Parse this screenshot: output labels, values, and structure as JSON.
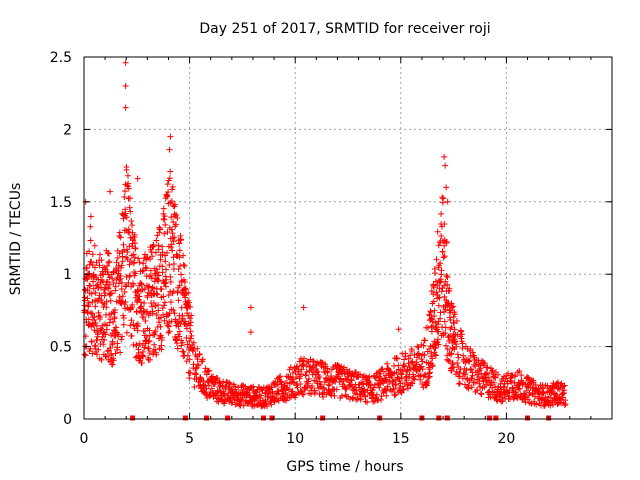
{
  "chart_data": {
    "type": "scatter",
    "title": "Day 251 of 2017, SRMTID for receiver roji",
    "xlabel": "GPS time / hours",
    "ylabel": "SRMTID / TECUs",
    "xlim": [
      0,
      25
    ],
    "ylim": [
      0,
      2.5
    ],
    "x_ticks": [
      0,
      5,
      10,
      15,
      20
    ],
    "x_tick_labels": [
      "0",
      "5",
      "10",
      "15",
      "20"
    ],
    "y_ticks": [
      0,
      0.5,
      1,
      1.5,
      2,
      2.5
    ],
    "y_tick_labels": [
      "0",
      "0.5",
      "1",
      "1.5",
      "2",
      "2.5"
    ],
    "grid": true,
    "marker": "+",
    "series_color": "#ff0000",
    "series": [
      {
        "name": "SRMTID",
        "profile_x": [
          0,
          0.3,
          0.6,
          1.0,
          1.5,
          1.9,
          2.0,
          2.3,
          2.7,
          3.2,
          3.8,
          4.1,
          4.5,
          4.9,
          5.3,
          5.8,
          6.3,
          7.0,
          7.8,
          8.5,
          9.2,
          9.8,
          10.3,
          10.9,
          11.5,
          12.3,
          13.0,
          13.6,
          14.2,
          14.8,
          15.3,
          15.8,
          16.2,
          16.6,
          16.9,
          17.1,
          17.3,
          17.7,
          18.2,
          18.8,
          19.3,
          19.8,
          20.4,
          21.0,
          21.5,
          22.0,
          22.4,
          22.8
        ],
        "profile_y": [
          0.65,
          0.95,
          0.75,
          0.8,
          0.7,
          1.1,
          1.2,
          0.9,
          0.75,
          0.8,
          1.0,
          1.2,
          0.9,
          0.6,
          0.35,
          0.25,
          0.2,
          0.17,
          0.16,
          0.15,
          0.2,
          0.25,
          0.3,
          0.28,
          0.27,
          0.25,
          0.22,
          0.2,
          0.25,
          0.3,
          0.33,
          0.35,
          0.4,
          0.7,
          1.1,
          0.95,
          0.6,
          0.45,
          0.35,
          0.28,
          0.25,
          0.2,
          0.25,
          0.2,
          0.17,
          0.16,
          0.18,
          0.17
        ],
        "peaks": [
          {
            "x": 1.97,
            "y": 2.46
          },
          {
            "x": 1.97,
            "y": 2.3
          },
          {
            "x": 1.97,
            "y": 2.15
          },
          {
            "x": 2.01,
            "y": 1.74
          },
          {
            "x": 2.54,
            "y": 1.66
          },
          {
            "x": 4.09,
            "y": 1.95
          },
          {
            "x": 4.05,
            "y": 1.86
          },
          {
            "x": 0.08,
            "y": 1.5
          },
          {
            "x": 1.23,
            "y": 1.57
          },
          {
            "x": 17.05,
            "y": 1.81
          },
          {
            "x": 17.1,
            "y": 1.75
          },
          {
            "x": 17.15,
            "y": 1.6
          },
          {
            "x": 17.22,
            "y": 1.5
          },
          {
            "x": 16.8,
            "y": 1.2
          },
          {
            "x": 7.9,
            "y": 0.77
          },
          {
            "x": 7.9,
            "y": 0.6
          },
          {
            "x": 10.4,
            "y": 0.77
          },
          {
            "x": 14.9,
            "y": 0.62
          },
          {
            "x": 16.2,
            "y": 0.63
          }
        ],
        "baseline_x": [
          2.3,
          4.8,
          5.8,
          6.8,
          8.5,
          8.9,
          11.3,
          14.0,
          16.0,
          16.8,
          17.2,
          19.2,
          19.5,
          21.0,
          22.0
        ]
      }
    ]
  }
}
